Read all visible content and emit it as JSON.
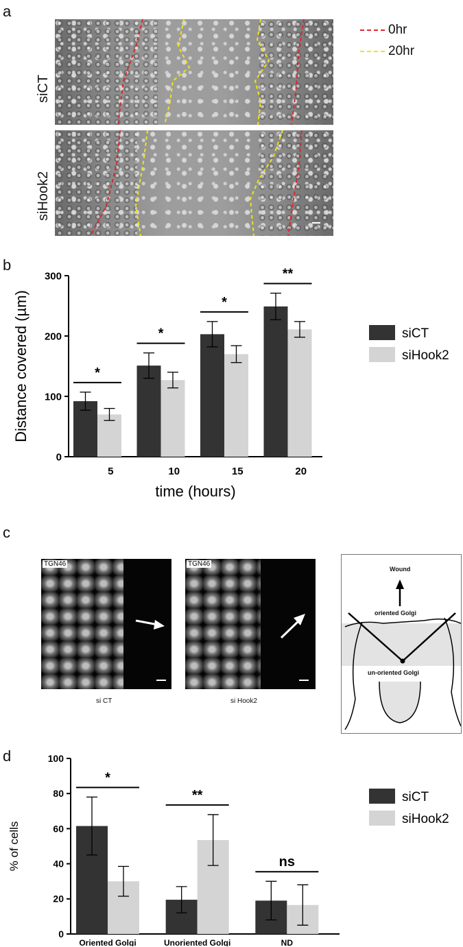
{
  "panel_a": {
    "letter": "a",
    "row_labels": [
      "siCT",
      "siHook2"
    ],
    "legend": [
      {
        "label": "0hr",
        "color": "#e0242b"
      },
      {
        "label": "20hr",
        "color": "#f2e312"
      }
    ]
  },
  "panel_b": {
    "letter": "b",
    "legend": [
      {
        "label": "siCT",
        "color": "#333333"
      },
      {
        "label": "siHook2",
        "color": "#d4d4d4"
      }
    ],
    "chart_data": {
      "type": "bar",
      "categories": [
        "5",
        "10",
        "15",
        "20"
      ],
      "series": [
        {
          "name": "siCT",
          "values": [
            92,
            151,
            203,
            249
          ],
          "errors": [
            15,
            21,
            21,
            22
          ]
        },
        {
          "name": "siHook2",
          "values": [
            70,
            127,
            170,
            211
          ],
          "errors": [
            10,
            13,
            14,
            13
          ]
        }
      ],
      "significance": [
        "*",
        "*",
        "*",
        "**"
      ],
      "xlabel": "time (hours)",
      "ylabel": "Distance covered (µm)",
      "ylim": [
        0,
        300
      ],
      "yticks": [
        0,
        100,
        200,
        300
      ]
    }
  },
  "panel_c": {
    "letter": "c",
    "images": [
      {
        "tag": "TGN46",
        "caption": "si CT"
      },
      {
        "tag": "TGN46",
        "caption": "si Hook2"
      }
    ],
    "schematic": {
      "top": "Wound",
      "oriented": "oriented Golgi",
      "unoriented": "un-oriented Golgi"
    }
  },
  "panel_d": {
    "letter": "d",
    "legend": [
      {
        "label": "siCT",
        "color": "#333333"
      },
      {
        "label": "siHook2",
        "color": "#d4d4d4"
      }
    ],
    "chart_data": {
      "type": "bar",
      "categories": [
        "Oriented Golgi",
        "Unoriented Golgi",
        "ND"
      ],
      "series": [
        {
          "name": "siCT",
          "values": [
            61.5,
            19.5,
            19
          ],
          "errors": [
            16.5,
            7.5,
            11
          ]
        },
        {
          "name": "siHook2",
          "values": [
            30,
            53.5,
            16.5
          ],
          "errors": [
            8.5,
            14.5,
            11.5
          ]
        }
      ],
      "significance": [
        "*",
        "**",
        "ns"
      ],
      "xlabel": "",
      "ylabel": "% of cells",
      "ylim": [
        0,
        100
      ],
      "yticks": [
        0,
        20,
        40,
        60,
        80,
        100
      ]
    }
  }
}
